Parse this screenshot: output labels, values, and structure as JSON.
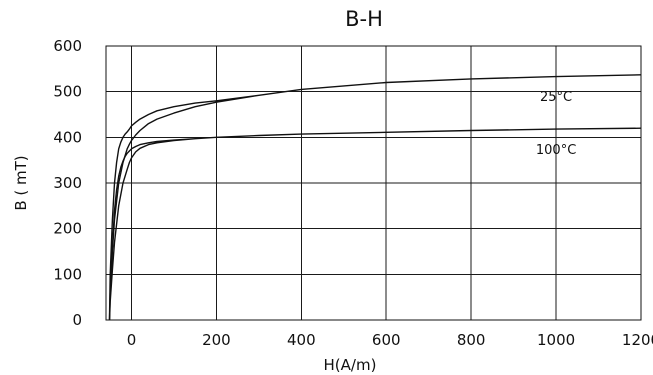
{
  "chart_data": {
    "type": "line",
    "title": "B-H",
    "xlabel": "H(A/m)",
    "ylabel": "B ( mT)",
    "xlim": [
      -60,
      1200
    ],
    "ylim": [
      0,
      600
    ],
    "xticks": [
      0,
      200,
      400,
      600,
      800,
      1000,
      1200
    ],
    "yticks": [
      0,
      100,
      200,
      300,
      400,
      500,
      600
    ],
    "grid": true,
    "colors": {
      "line": "#111111",
      "grid": "#1a1a1a"
    },
    "series": [
      {
        "name": "25°C",
        "label_at": [
          1000,
          480
        ],
        "x": [
          -52,
          -50,
          -45,
          -40,
          -35,
          -30,
          -25,
          -20,
          -15,
          -10,
          -5,
          0,
          10,
          20,
          40,
          60,
          100,
          150,
          200,
          300,
          400,
          600,
          800,
          1000,
          1200,
          1000,
          800,
          600,
          400,
          300,
          200,
          150,
          100,
          60,
          40,
          20,
          10,
          0,
          -5,
          -10,
          -20,
          -30,
          -40,
          -45,
          -50,
          -52
        ],
        "y": [
          -10,
          100,
          220,
          300,
          345,
          375,
          390,
          400,
          407,
          412,
          418,
          425,
          433,
          440,
          450,
          458,
          467,
          475,
          480,
          492,
          505,
          520,
          528,
          533,
          537,
          533,
          528,
          520,
          505,
          492,
          477,
          467,
          453,
          440,
          430,
          415,
          405,
          393,
          385,
          375,
          345,
          300,
          220,
          150,
          60,
          -10
        ]
      },
      {
        "name": "100°C",
        "label_at": [
          1000,
          364
        ],
        "x": [
          -52,
          -50,
          -45,
          -40,
          -35,
          -30,
          -25,
          -20,
          -15,
          -10,
          -5,
          0,
          10,
          20,
          40,
          60,
          100,
          150,
          200,
          300,
          400,
          600,
          800,
          1000,
          1200,
          1000,
          800,
          600,
          400,
          300,
          200,
          150,
          100,
          60,
          40,
          20,
          10,
          0,
          -5,
          -10,
          -20,
          -30,
          -40,
          -45,
          -50,
          -52
        ],
        "y": [
          -10,
          60,
          160,
          240,
          285,
          315,
          335,
          348,
          358,
          365,
          370,
          375,
          380,
          384,
          388,
          391,
          394,
          397,
          400,
          404,
          407,
          411,
          415,
          418,
          420,
          418,
          415,
          411,
          407,
          404,
          400,
          397,
          393,
          388,
          384,
          376,
          368,
          355,
          345,
          330,
          300,
          250,
          170,
          110,
          40,
          -10
        ]
      }
    ]
  }
}
